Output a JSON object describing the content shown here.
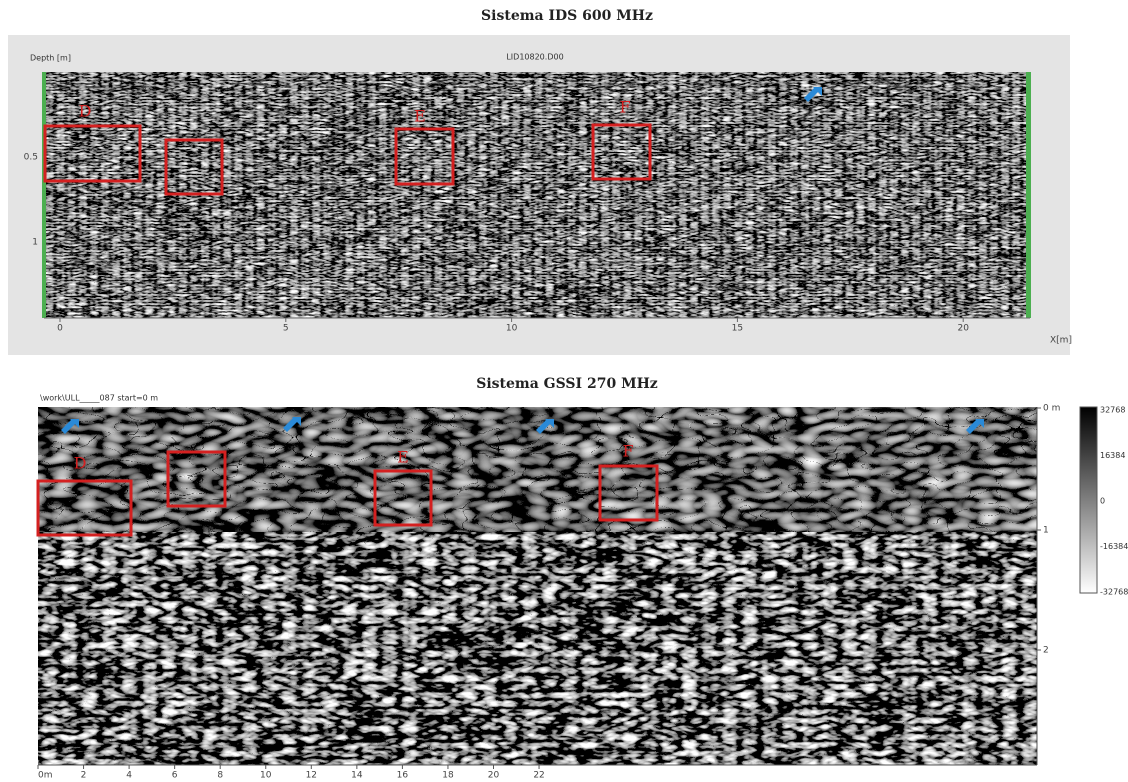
{
  "panels": [
    {
      "title": "Sistema IDS 600 MHz",
      "depth_label": "Depth [m]",
      "file_label": "LID10820.D00",
      "y_ticks": [
        "0.5",
        "1"
      ],
      "x_ticks": [
        "0",
        "5",
        "10",
        "15",
        "20"
      ],
      "x_unit": "X[m]",
      "annotations": [
        "D",
        "E",
        "F"
      ]
    },
    {
      "title": "Sistema GSSI 270 MHz",
      "file_label": "\\work\\ULL_____087    start=0 m",
      "y_ticks": [
        "0 m",
        "1",
        "2"
      ],
      "x_ticks": [
        "0m",
        "2",
        "4",
        "6",
        "8",
        "10",
        "12",
        "14",
        "16",
        "18",
        "20",
        "22"
      ],
      "annotations": [
        "D",
        "E",
        "F"
      ],
      "colorbar_ticks": [
        "32768",
        "16384",
        "0",
        "-16384",
        "-32768"
      ]
    }
  ]
}
